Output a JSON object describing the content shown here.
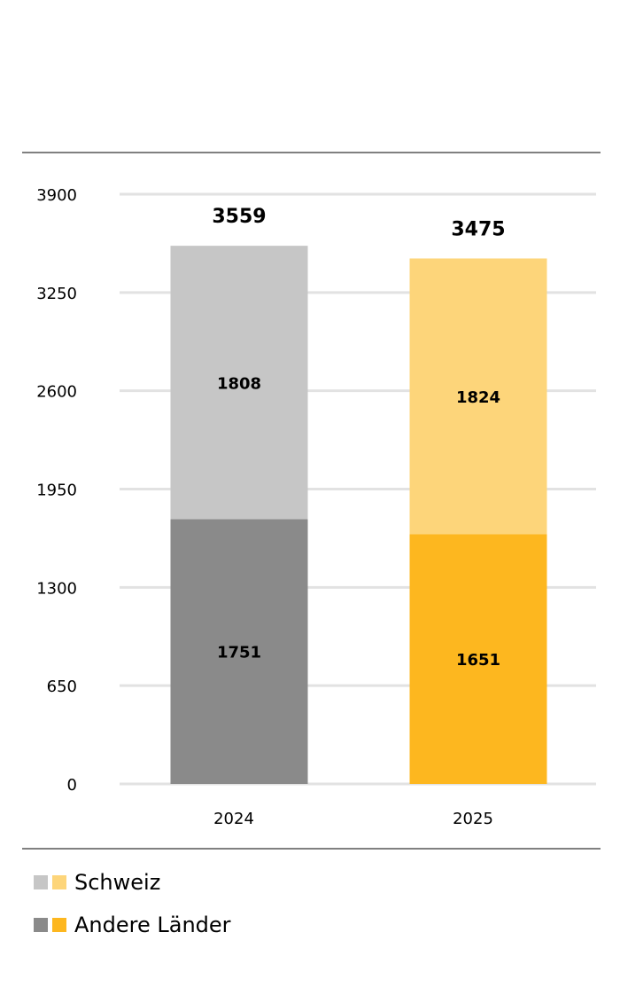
{
  "chart_data": {
    "type": "stacked_bar",
    "categories": [
      "2024",
      "2025"
    ],
    "series": [
      {
        "name": "Andere Länder",
        "colors": [
          "#8a8a8a",
          "#fdb71f"
        ],
        "values": [
          1751,
          1651
        ]
      },
      {
        "name": "Schweiz",
        "colors": [
          "#c6c6c6",
          "#fdd57a"
        ],
        "values": [
          1808,
          1824
        ]
      }
    ],
    "totals": [
      3559,
      3475
    ],
    "ylim": [
      0,
      3900
    ],
    "yticks": [
      0,
      650,
      1300,
      1950,
      2600,
      3250,
      3900
    ],
    "grid": true
  }
}
